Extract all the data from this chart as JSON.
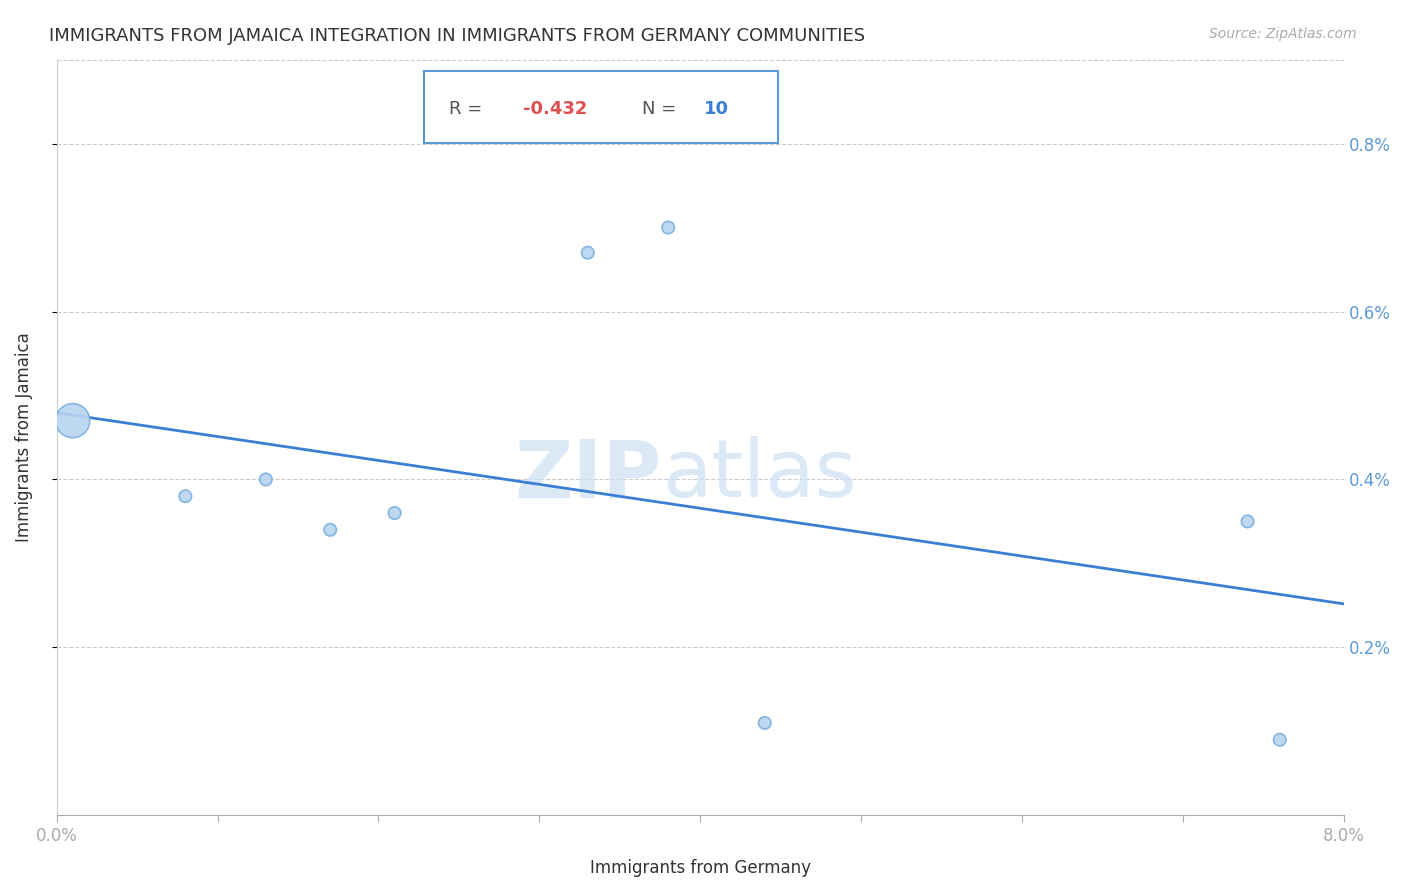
{
  "title": "IMMIGRANTS FROM JAMAICA INTEGRATION IN IMMIGRANTS FROM GERMANY COMMUNITIES",
  "source": "Source: ZipAtlas.com",
  "xlabel": "Immigrants from Germany",
  "ylabel": "Immigrants from Jamaica",
  "watermark_zip": "ZIP",
  "watermark_atlas": "atlas",
  "R_value": -0.432,
  "N_value": 10,
  "xlim": [
    0.0,
    0.08
  ],
  "ylim": [
    0.0,
    0.009
  ],
  "y_tick_labels": [
    "0.2%",
    "0.4%",
    "0.6%",
    "0.8%"
  ],
  "y_ticks": [
    0.002,
    0.004,
    0.006,
    0.008
  ],
  "scatter_x": [
    0.001,
    0.008,
    0.013,
    0.017,
    0.021,
    0.033,
    0.038,
    0.044,
    0.074,
    0.076
  ],
  "scatter_y": [
    0.0047,
    0.0038,
    0.004,
    0.0034,
    0.0036,
    0.0067,
    0.007,
    0.0011,
    0.0035,
    0.0009
  ],
  "scatter_sizes": [
    600,
    80,
    80,
    80,
    80,
    80,
    80,
    80,
    80,
    80
  ],
  "dot_color": "#b8d4f0",
  "dot_edge_color": "#7ab0e0",
  "regression_color": "#3a7fd4",
  "title_color": "#333333",
  "axis_label_color": "#333333",
  "tick_label_color": "#5b9bd5",
  "grid_color": "#cccccc",
  "background_color": "#ffffff",
  "title_fontsize": 13,
  "axis_label_fontsize": 12,
  "tick_fontsize": 12,
  "annotation_border_color": "#5b9bd5",
  "R_color": "#e05050",
  "N_color": "#3a7fd4"
}
